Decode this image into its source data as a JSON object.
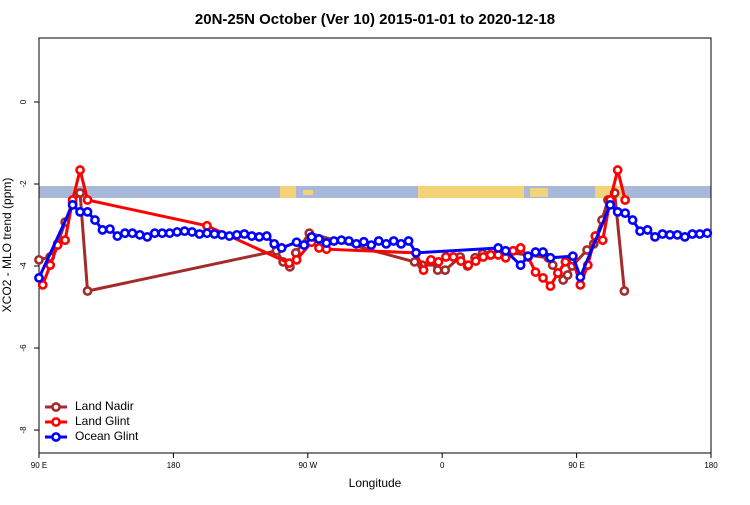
{
  "chart_data": {
    "type": "line",
    "title": "20N-25N October (Ver 10)   2015-01-01 to 2020-12-18",
    "x_label": "Longitude",
    "y_label": "XCO2 - MLO trend (ppm)",
    "xlim": [
      90,
      540
    ],
    "ylim": [
      -8.56,
      1.56
    ],
    "xticks": [
      {
        "value": 90,
        "label": "90 E"
      },
      180,
      {
        "value": 270,
        "label": "90 W"
      },
      {
        "value": 360,
        "label": "0"
      },
      {
        "value": 450,
        "label": "90 E"
      },
      {
        "value": 540,
        "label": "180"
      }
    ],
    "yticks": [
      -8,
      -6,
      -4,
      -2,
      0
    ],
    "legend": "bottomleft",
    "series": [
      {
        "name": "Land Nadir",
        "color": "#a52a2a",
        "x": [
          90,
          97.5,
          102.5,
          107.5,
          112.5,
          117.5,
          122.5,
          249,
          253.5,
          258,
          262,
          271,
          341.5,
          346.5,
          352,
          357,
          362,
          372,
          377,
          382,
          387,
          392,
          397.5,
          402.5,
          431,
          434,
          437.5,
          441,
          444,
          447,
          457,
          461.5,
          467,
          471,
          475.5,
          482
        ],
        "values": [
          -3.85,
          -3.78,
          -3.46,
          -2.93,
          -2.44,
          -2.22,
          -4.61,
          -3.63,
          -3.9,
          -4.02,
          -3.68,
          -3.2,
          -3.9,
          -3.98,
          -3.9,
          -4.1,
          -4.1,
          -3.78,
          -4.0,
          -3.8,
          -3.7,
          -3.73,
          -3.66,
          -3.66,
          -3.8,
          -3.98,
          -4.17,
          -4.34,
          -4.22,
          -4.0,
          -3.61,
          -3.46,
          -2.88,
          -2.39,
          -2.22,
          -4.61
        ]
      },
      {
        "name": "Land Glint",
        "color": "#ff0000",
        "x": [
          92.5,
          97.5,
          102.5,
          107.5,
          112.5,
          117.5,
          122.5,
          202.5,
          257.5,
          262.5,
          272.5,
          277.5,
          282.5,
          342.5,
          347.5,
          352.5,
          357.5,
          362.5,
          367.5,
          372.5,
          377.5,
          382.5,
          387.5,
          392.5,
          397.5,
          402.5,
          407.5,
          412.5,
          417.5,
          422.5,
          427.5,
          432.5,
          437.5,
          442.5,
          447.5,
          452.5,
          457.5,
          462.5,
          467.5,
          472.5,
          477.5,
          482.5
        ],
        "values": [
          -4.46,
          -3.98,
          -3.49,
          -3.37,
          -2.39,
          -1.66,
          -2.39,
          -3.02,
          -3.93,
          -3.85,
          -3.42,
          -3.56,
          -3.59,
          -3.68,
          -4.1,
          -3.85,
          -3.9,
          -3.78,
          -3.78,
          -3.88,
          -3.98,
          -3.88,
          -3.78,
          -3.73,
          -3.73,
          -3.8,
          -3.63,
          -3.56,
          -3.78,
          -4.15,
          -4.29,
          -4.49,
          -4.17,
          -3.9,
          -3.85,
          -4.46,
          -3.98,
          -3.27,
          -3.37,
          -2.39,
          -1.66,
          -2.39
        ]
      },
      {
        "name": "Ocean Glint",
        "color": "#0000ff",
        "x": [
          90,
          112.5,
          117.5,
          122.5,
          127.5,
          132.5,
          137.5,
          142.5,
          147.5,
          152.5,
          157.5,
          162.5,
          167.5,
          172.5,
          177.5,
          182.5,
          187.5,
          192.5,
          197.5,
          202.5,
          207.5,
          212.5,
          217.5,
          222.5,
          227.5,
          232.5,
          237.5,
          242.5,
          247.5,
          252.5,
          262.5,
          267.5,
          272.5,
          277.5,
          282.5,
          287.5,
          292.5,
          297.5,
          302.5,
          307.5,
          312.5,
          317.5,
          322.5,
          327.5,
          332.5,
          337.5,
          342.5,
          397.5,
          402.5,
          412.5,
          417.5,
          422.5,
          427.5,
          432.5,
          447.5,
          452.5,
          472.5,
          477.5,
          482.5,
          487.5,
          492.5,
          497.5,
          502.5,
          507.5,
          512.5,
          517.5,
          522.5,
          527.5,
          532.5,
          537.5
        ],
        "values": [
          -4.29,
          -2.51,
          -2.68,
          -2.68,
          -2.88,
          -3.12,
          -3.1,
          -3.27,
          -3.2,
          -3.2,
          -3.24,
          -3.29,
          -3.2,
          -3.2,
          -3.2,
          -3.17,
          -3.15,
          -3.17,
          -3.22,
          -3.2,
          -3.22,
          -3.24,
          -3.27,
          -3.24,
          -3.22,
          -3.27,
          -3.29,
          -3.27,
          -3.46,
          -3.56,
          -3.42,
          -3.49,
          -3.29,
          -3.34,
          -3.44,
          -3.39,
          -3.37,
          -3.39,
          -3.46,
          -3.41,
          -3.49,
          -3.39,
          -3.46,
          -3.39,
          -3.46,
          -3.39,
          -3.68,
          -3.56,
          -3.63,
          -3.98,
          -3.76,
          -3.66,
          -3.66,
          -3.8,
          -3.76,
          -4.27,
          -2.51,
          -2.68,
          -2.71,
          -2.88,
          -3.15,
          -3.12,
          -3.29,
          -3.22,
          -3.24,
          -3.24,
          -3.29,
          -3.22,
          -3.22,
          -3.2
        ]
      }
    ]
  }
}
